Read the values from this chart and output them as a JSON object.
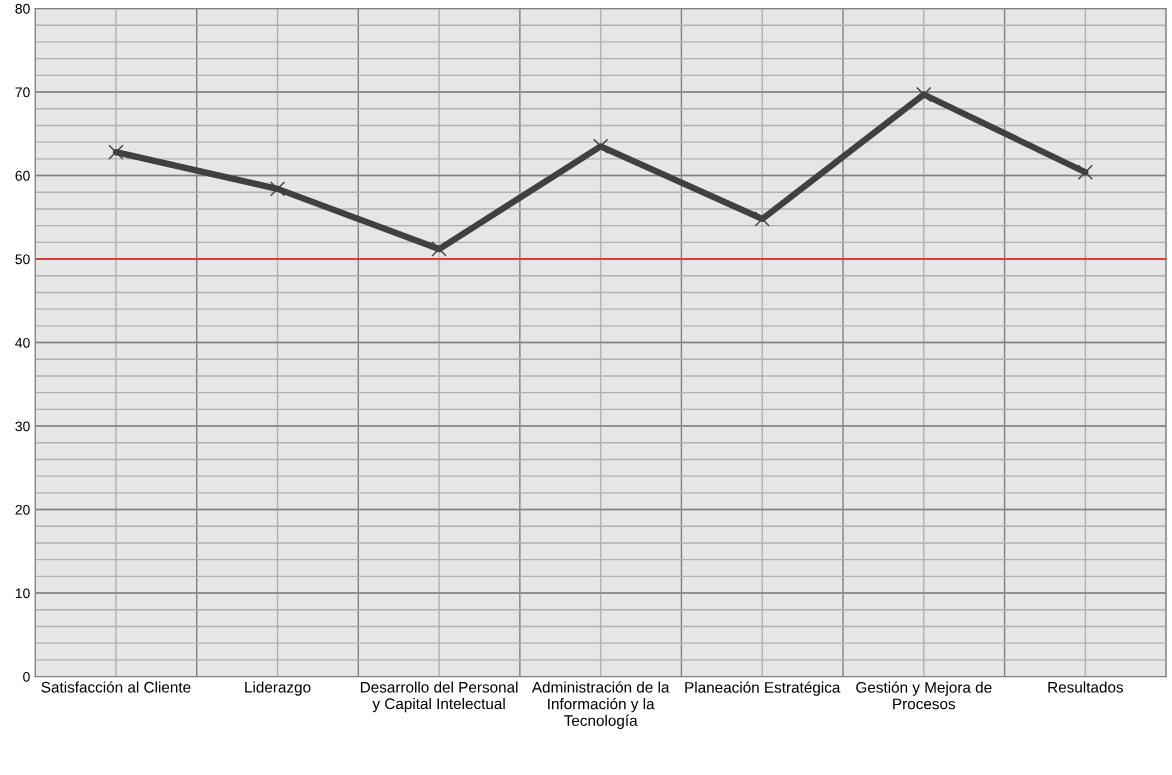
{
  "chart_data": {
    "type": "line",
    "categories": [
      "Satisfacción al Cliente",
      "Liderazgo",
      "Desarrollo del Personal\ny Capital Intelectual",
      "Administración de la\nInformación y la\nTecnología",
      "Planeación Estratégica",
      "Gestión y Mejora de\nProcesos",
      "Resultados"
    ],
    "series": [
      {
        "color": "#404040",
        "values": [
          62.8,
          58.4,
          51.2,
          63.5,
          54.8,
          69.7,
          60.4
        ]
      }
    ],
    "ylim": [
      0,
      80
    ],
    "yticks": [
      0,
      {
        "value": 2,
        "label": null
      },
      {
        "value": 4,
        "label": null
      },
      {
        "value": 6,
        "label": null
      },
      {
        "value": 8,
        "label": null
      },
      10,
      {
        "value": 12,
        "label": null
      },
      {
        "value": 14,
        "label": null
      },
      {
        "value": 16,
        "label": null
      },
      {
        "value": 18,
        "label": null
      },
      20,
      {
        "value": 22,
        "label": null
      },
      {
        "value": 24,
        "label": null
      },
      {
        "value": 26,
        "label": null
      },
      {
        "value": 28,
        "label": null
      },
      30,
      {
        "value": 32,
        "label": null
      },
      {
        "value": 34,
        "label": null
      },
      {
        "value": 36,
        "label": null
      },
      {
        "value": 38,
        "label": null
      },
      40,
      {
        "value": 42,
        "label": null
      },
      {
        "value": 44,
        "label": null
      },
      {
        "value": 46,
        "label": null
      },
      {
        "value": 48,
        "label": null
      },
      50,
      {
        "value": 52,
        "label": null
      },
      {
        "value": 54,
        "label": null
      },
      {
        "value": 56,
        "label": null
      },
      {
        "value": 58,
        "label": null
      },
      60,
      {
        "value": 62,
        "label": null
      },
      {
        "value": 64,
        "label": null
      },
      {
        "value": 66,
        "label": null
      },
      {
        "value": 68,
        "label": null
      },
      70,
      {
        "value": 72,
        "label": null
      },
      {
        "value": 74,
        "label": null
      },
      {
        "value": 76,
        "label": null
      },
      {
        "value": 78,
        "label": null
      },
      80
    ],
    "ref_lines": [
      {
        "axis": "y",
        "value": 50,
        "color": "#d9403a"
      }
    ],
    "grid": true,
    "marker": "cross",
    "line_style": "solid"
  }
}
